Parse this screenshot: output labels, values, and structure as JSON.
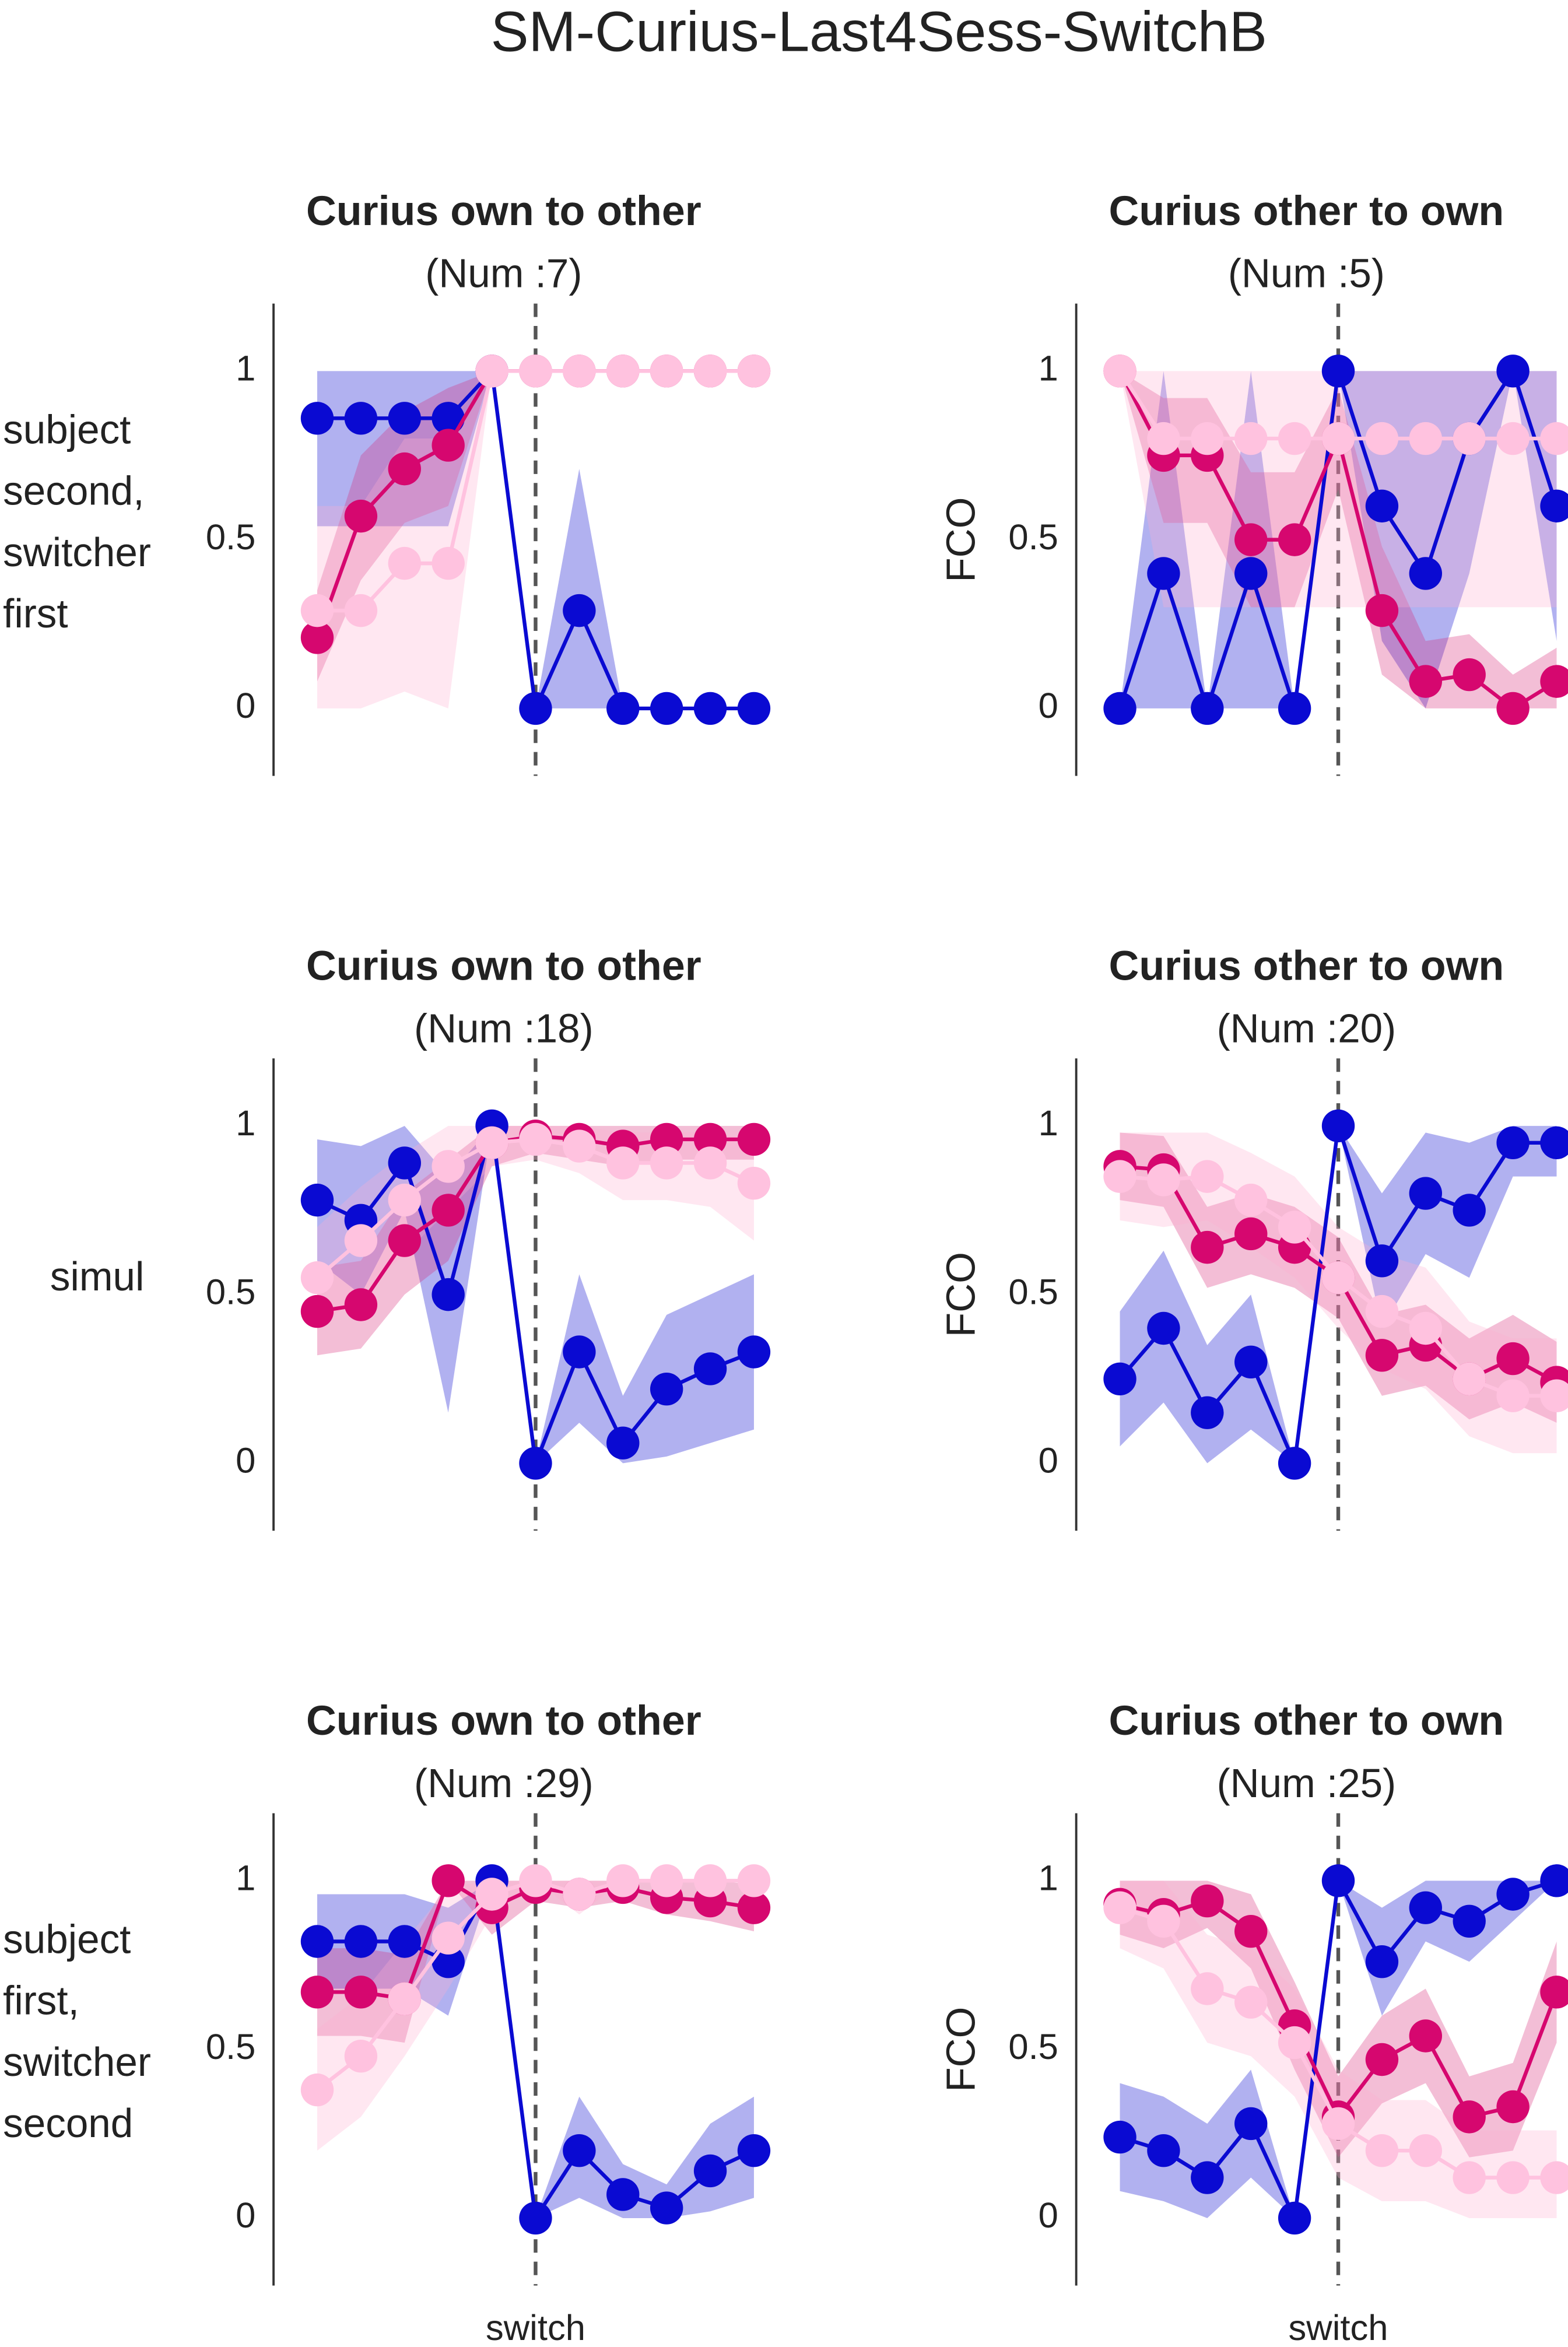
{
  "title": "SM-Curius-Last4Sess-SwitchB",
  "chart_data": [
    {
      "type": "line",
      "title": "Curius own to other",
      "subtitle": "(Num :7)",
      "ylabel": [
        "subject",
        "second,",
        "switcher",
        "first"
      ],
      "x": [
        -5,
        -4,
        -3,
        -2,
        -1,
        0,
        1,
        2,
        3,
        4,
        5
      ],
      "xlim": [
        -6,
        5.5
      ],
      "ylim": [
        -0.2,
        1.2
      ],
      "yticks": [
        0,
        0.5,
        1
      ],
      "vline": 0,
      "series": [
        {
          "color": "#0a0ad2",
          "values": [
            0.86,
            0.86,
            0.86,
            0.86,
            1,
            0,
            0.29,
            0,
            0,
            0,
            0
          ],
          "lower": [
            0.54,
            0.54,
            0.54,
            0.54,
            1,
            0,
            0,
            0,
            0,
            0,
            0
          ],
          "upper": [
            1,
            1,
            1,
            1,
            1,
            0,
            0.71,
            0,
            0,
            0,
            0
          ]
        },
        {
          "color": "#d6076f",
          "values": [
            0.21,
            0.57,
            0.71,
            0.78,
            1,
            1,
            1,
            1,
            1,
            1,
            1
          ],
          "lower": [
            0.08,
            0.38,
            0.55,
            0.6,
            1,
            1,
            1,
            1,
            1,
            1,
            1
          ],
          "upper": [
            0.35,
            0.75,
            0.88,
            0.95,
            1,
            1,
            1,
            1,
            1,
            1,
            1
          ]
        },
        {
          "color": "#ffc2df",
          "values": [
            0.29,
            0.29,
            0.43,
            0.43,
            1,
            1,
            1,
            1,
            1,
            1,
            1
          ],
          "lower": [
            0,
            0,
            0.05,
            0.0,
            1,
            1,
            1,
            1,
            1,
            1,
            1
          ],
          "upper": [
            0.6,
            0.6,
            0.8,
            0.8,
            1,
            1,
            1,
            1,
            1,
            1,
            1
          ]
        }
      ]
    },
    {
      "type": "line",
      "title": "Curius other to own",
      "subtitle": "(Num :5)",
      "ylabel": [
        "FCO"
      ],
      "x": [
        -5,
        -4,
        -3,
        -2,
        -1,
        0,
        1,
        2,
        3,
        4,
        5
      ],
      "xlim": [
        -6,
        5.5
      ],
      "ylim": [
        -0.2,
        1.2
      ],
      "yticks": [
        0,
        0.5,
        1
      ],
      "vline": 0,
      "series": [
        {
          "color": "#0a0ad2",
          "values": [
            0,
            0.4,
            0,
            0.4,
            0,
            1,
            0.6,
            0.4,
            0.8,
            1,
            0.6
          ],
          "lower": [
            0,
            0,
            0,
            0,
            0,
            1,
            0.2,
            0,
            0.4,
            1,
            0.2
          ],
          "upper": [
            0,
            1,
            0,
            1,
            0,
            1,
            1,
            1,
            1,
            1,
            1
          ]
        },
        {
          "color": "#d6076f",
          "values": [
            1,
            0.75,
            0.75,
            0.5,
            0.5,
            0.8,
            0.29,
            0.08,
            0.1,
            0,
            0.08
          ],
          "lower": [
            1,
            0.55,
            0.55,
            0.3,
            0.3,
            0.65,
            0.1,
            0,
            0,
            0,
            0
          ],
          "upper": [
            1,
            0.92,
            0.92,
            0.7,
            0.7,
            0.95,
            0.48,
            0.2,
            0.22,
            0.1,
            0.18
          ]
        },
        {
          "color": "#ffc2df",
          "values": [
            1,
            0.8,
            0.8,
            0.8,
            0.8,
            0.8,
            0.8,
            0.8,
            0.8,
            0.8,
            0.8
          ],
          "lower": [
            1,
            0.3,
            0.3,
            0.3,
            0.3,
            0.3,
            0.3,
            0.3,
            0.3,
            0.3,
            0.3
          ],
          "upper": [
            1,
            1,
            1,
            1,
            1,
            1,
            1,
            1,
            1,
            1,
            1
          ]
        }
      ]
    },
    {
      "type": "line",
      "title": "Curius own to other",
      "subtitle": "(Num :18)",
      "ylabel": [
        "simul"
      ],
      "x": [
        -5,
        -4,
        -3,
        -2,
        -1,
        0,
        1,
        2,
        3,
        4,
        5
      ],
      "xlim": [
        -6,
        5.5
      ],
      "ylim": [
        -0.2,
        1.2
      ],
      "yticks": [
        0,
        0.5,
        1
      ],
      "vline": 0,
      "series": [
        {
          "color": "#0a0ad2",
          "values": [
            0.78,
            0.72,
            0.89,
            0.5,
            1,
            0,
            0.33,
            0.06,
            0.22,
            0.28,
            0.33
          ],
          "lower": [
            0.6,
            0.5,
            0.75,
            0.15,
            1,
            0,
            0.12,
            0,
            0.02,
            0.06,
            0.1
          ],
          "upper": [
            0.96,
            0.94,
            1,
            0.85,
            1,
            0,
            0.56,
            0.2,
            0.44,
            0.5,
            0.56
          ]
        },
        {
          "color": "#d6076f",
          "values": [
            0.45,
            0.47,
            0.66,
            0.75,
            0.95,
            0.97,
            0.96,
            0.94,
            0.96,
            0.96,
            0.96
          ],
          "lower": [
            0.32,
            0.34,
            0.5,
            0.6,
            0.88,
            0.92,
            0.9,
            0.88,
            0.9,
            0.9,
            0.9
          ],
          "upper": [
            0.58,
            0.6,
            0.8,
            0.9,
            1,
            1,
            1,
            1,
            1,
            1,
            1
          ]
        },
        {
          "color": "#ffc2df",
          "values": [
            0.55,
            0.66,
            0.78,
            0.88,
            0.95,
            0.96,
            0.94,
            0.89,
            0.89,
            0.89,
            0.83
          ],
          "lower": [
            0.4,
            0.5,
            0.62,
            0.75,
            0.88,
            0.9,
            0.86,
            0.78,
            0.78,
            0.76,
            0.66
          ],
          "upper": [
            0.7,
            0.82,
            0.92,
            1,
            1,
            1,
            1,
            0.98,
            0.98,
            0.98,
            0.96
          ]
        }
      ]
    },
    {
      "type": "line",
      "title": "Curius other to own",
      "subtitle": "(Num :20)",
      "ylabel": [
        "FCO"
      ],
      "x": [
        -5,
        -4,
        -3,
        -2,
        -1,
        0,
        1,
        2,
        3,
        4,
        5
      ],
      "xlim": [
        -6,
        5.5
      ],
      "ylim": [
        -0.2,
        1.2
      ],
      "yticks": [
        0,
        0.5,
        1
      ],
      "vline": 0,
      "series": [
        {
          "color": "#0a0ad2",
          "values": [
            0.25,
            0.4,
            0.15,
            0.3,
            0,
            1,
            0.6,
            0.8,
            0.75,
            0.95,
            0.95
          ],
          "lower": [
            0.05,
            0.18,
            0,
            0.1,
            0,
            1,
            0.4,
            0.62,
            0.55,
            0.85,
            0.85
          ],
          "upper": [
            0.45,
            0.63,
            0.35,
            0.5,
            0,
            1,
            0.8,
            0.98,
            0.95,
            1,
            1
          ]
        },
        {
          "color": "#d6076f",
          "values": [
            0.88,
            0.87,
            0.64,
            0.68,
            0.64,
            0.55,
            0.32,
            0.35,
            0.25,
            0.31,
            0.24
          ],
          "lower": [
            0.78,
            0.76,
            0.52,
            0.56,
            0.52,
            0.43,
            0.2,
            0.23,
            0.13,
            0.18,
            0.12
          ],
          "upper": [
            0.98,
            0.97,
            0.76,
            0.8,
            0.76,
            0.67,
            0.44,
            0.47,
            0.37,
            0.44,
            0.36
          ]
        },
        {
          "color": "#ffc2df",
          "values": [
            0.85,
            0.84,
            0.85,
            0.78,
            0.7,
            0.55,
            0.45,
            0.4,
            0.25,
            0.2,
            0.2
          ],
          "lower": [
            0.72,
            0.7,
            0.72,
            0.64,
            0.55,
            0.4,
            0.28,
            0.22,
            0.08,
            0.03,
            0.03
          ],
          "upper": [
            0.98,
            0.98,
            0.98,
            0.92,
            0.85,
            0.7,
            0.62,
            0.58,
            0.42,
            0.37,
            0.37
          ]
        }
      ]
    },
    {
      "type": "line",
      "title": "Curius own to other",
      "subtitle": "(Num :29)",
      "ylabel": [
        "subject",
        "first,",
        "switcher",
        "second"
      ],
      "x": [
        -5,
        -4,
        -3,
        -2,
        -1,
        0,
        1,
        2,
        3,
        4,
        5
      ],
      "xlim": [
        -6,
        5.5
      ],
      "ylim": [
        -0.2,
        1.2
      ],
      "yticks": [
        0,
        0.5,
        1
      ],
      "vline": 0,
      "xticks": [
        {
          "value": 0,
          "label": "switch"
        }
      ],
      "series": [
        {
          "color": "#0a0ad2",
          "values": [
            0.82,
            0.82,
            0.82,
            0.76,
            1,
            0,
            0.2,
            0.07,
            0.03,
            0.14,
            0.2
          ],
          "lower": [
            0.68,
            0.68,
            0.68,
            0.6,
            1,
            0,
            0.06,
            0,
            0,
            0.02,
            0.06
          ],
          "upper": [
            0.96,
            0.96,
            0.96,
            0.92,
            1,
            0,
            0.36,
            0.16,
            0.1,
            0.28,
            0.36
          ]
        },
        {
          "color": "#d6076f",
          "values": [
            0.67,
            0.67,
            0.65,
            1,
            0.92,
            0.98,
            0.96,
            0.98,
            0.95,
            0.94,
            0.92
          ],
          "lower": [
            0.54,
            0.54,
            0.52,
            1,
            0.84,
            0.94,
            0.92,
            0.94,
            0.9,
            0.88,
            0.85
          ],
          "upper": [
            0.8,
            0.8,
            0.78,
            1,
            1,
            1,
            1,
            1,
            1,
            1,
            0.99
          ]
        },
        {
          "color": "#ffc2df",
          "values": [
            0.38,
            0.48,
            0.65,
            0.83,
            0.96,
            1,
            0.96,
            1,
            1,
            1,
            1
          ],
          "lower": [
            0.2,
            0.3,
            0.48,
            0.68,
            0.9,
            1,
            0.9,
            1,
            1,
            1,
            1
          ],
          "upper": [
            0.56,
            0.66,
            0.82,
            0.98,
            1,
            1,
            1,
            1,
            1,
            1,
            1
          ]
        }
      ]
    },
    {
      "type": "line",
      "title": "Curius other to own",
      "subtitle": "(Num :25)",
      "ylabel": [
        "FCO"
      ],
      "x": [
        -5,
        -4,
        -3,
        -2,
        -1,
        0,
        1,
        2,
        3,
        4,
        5
      ],
      "xlim": [
        -6,
        5.5
      ],
      "ylim": [
        -0.2,
        1.2
      ],
      "yticks": [
        0,
        0.5,
        1
      ],
      "vline": 0,
      "xticks": [
        {
          "value": 0,
          "label": "switch"
        }
      ],
      "series": [
        {
          "color": "#0a0ad2",
          "values": [
            0.24,
            0.2,
            0.12,
            0.28,
            0,
            1,
            0.76,
            0.92,
            0.88,
            0.96,
            1
          ],
          "lower": [
            0.08,
            0.05,
            0,
            0.12,
            0,
            1,
            0.6,
            0.82,
            0.76,
            0.88,
            1
          ],
          "upper": [
            0.4,
            0.36,
            0.28,
            0.44,
            0,
            1,
            0.92,
            1,
            1,
            1,
            1
          ]
        },
        {
          "color": "#d6076f",
          "values": [
            0.93,
            0.9,
            0.94,
            0.85,
            0.57,
            0.3,
            0.47,
            0.54,
            0.3,
            0.33,
            0.67
          ],
          "lower": [
            0.84,
            0.8,
            0.86,
            0.74,
            0.44,
            0.18,
            0.34,
            0.4,
            0.18,
            0.2,
            0.52
          ],
          "upper": [
            1,
            1,
            1,
            0.96,
            0.7,
            0.42,
            0.6,
            0.68,
            0.42,
            0.46,
            0.82
          ]
        },
        {
          "color": "#ffc2df",
          "values": [
            0.92,
            0.88,
            0.68,
            0.64,
            0.52,
            0.28,
            0.2,
            0.2,
            0.12,
            0.12,
            0.12
          ],
          "lower": [
            0.8,
            0.74,
            0.52,
            0.48,
            0.36,
            0.12,
            0.05,
            0.05,
            0,
            0,
            0
          ],
          "upper": [
            1,
            1,
            0.84,
            0.8,
            0.68,
            0.44,
            0.35,
            0.35,
            0.26,
            0.26,
            0.26
          ]
        }
      ]
    }
  ]
}
